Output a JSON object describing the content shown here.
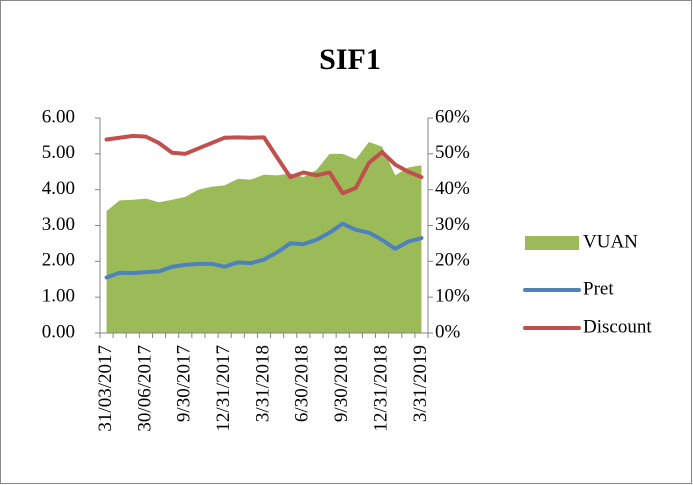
{
  "chart_data": {
    "type": "combo",
    "title": "SIF1",
    "categories": [
      "31/03/2017",
      null,
      null,
      "30/06/2017",
      null,
      null,
      "9/30/2017",
      null,
      null,
      "12/31/2017",
      null,
      null,
      "3/31/2018",
      null,
      null,
      "6/30/2018",
      null,
      null,
      "9/30/2018",
      null,
      null,
      "12/31/2018",
      null,
      null,
      "3/31/2019"
    ],
    "series": [
      {
        "name": "VUAN",
        "type": "area",
        "color": "#9bbb59",
        "values": [
          3.4,
          3.7,
          3.72,
          3.75,
          3.65,
          3.72,
          3.8,
          4.0,
          4.08,
          4.12,
          4.3,
          4.28,
          4.42,
          4.4,
          4.45,
          4.35,
          4.55,
          5.0,
          5.0,
          4.85,
          5.33,
          5.2,
          4.4,
          4.62,
          4.68
        ]
      },
      {
        "name": "Pret",
        "type": "line",
        "color": "#4f81bd",
        "values": [
          1.55,
          1.68,
          1.67,
          1.7,
          1.72,
          1.85,
          1.9,
          1.93,
          1.93,
          1.85,
          1.97,
          1.95,
          2.05,
          2.25,
          2.5,
          2.48,
          2.6,
          2.8,
          3.05,
          2.88,
          2.8,
          2.6,
          2.35,
          2.55,
          2.65
        ]
      },
      {
        "name": "Discount",
        "type": "line",
        "axis": "y2",
        "color": "#c0504d",
        "values": [
          54,
          54.5,
          55,
          54.8,
          53,
          50.3,
          50,
          51.5,
          53,
          54.5,
          54.6,
          54.5,
          54.6,
          49,
          43.5,
          44.8,
          44,
          44.8,
          39,
          40.5,
          47.5,
          50.5,
          47,
          45,
          43.5
        ]
      }
    ],
    "ylim": [
      0,
      6
    ],
    "yticks": [
      {
        "value": 0,
        "label": "0.00"
      },
      {
        "value": 1,
        "label": "1.00"
      },
      {
        "value": 2,
        "label": "2.00"
      },
      {
        "value": 3,
        "label": "3.00"
      },
      {
        "value": 4,
        "label": "4.00"
      },
      {
        "value": 5,
        "label": "5.00"
      },
      {
        "value": 6,
        "label": "6.00"
      }
    ],
    "y2lim": [
      0,
      60
    ],
    "y2ticks": [
      {
        "value": 0,
        "label": "0%"
      },
      {
        "value": 10,
        "label": "10%"
      },
      {
        "value": 20,
        "label": "20%"
      },
      {
        "value": 30,
        "label": "30%"
      },
      {
        "value": 40,
        "label": "40%"
      },
      {
        "value": 50,
        "label": "50%"
      },
      {
        "value": 60,
        "label": "60%"
      }
    ],
    "legend": "right",
    "grid": false
  }
}
